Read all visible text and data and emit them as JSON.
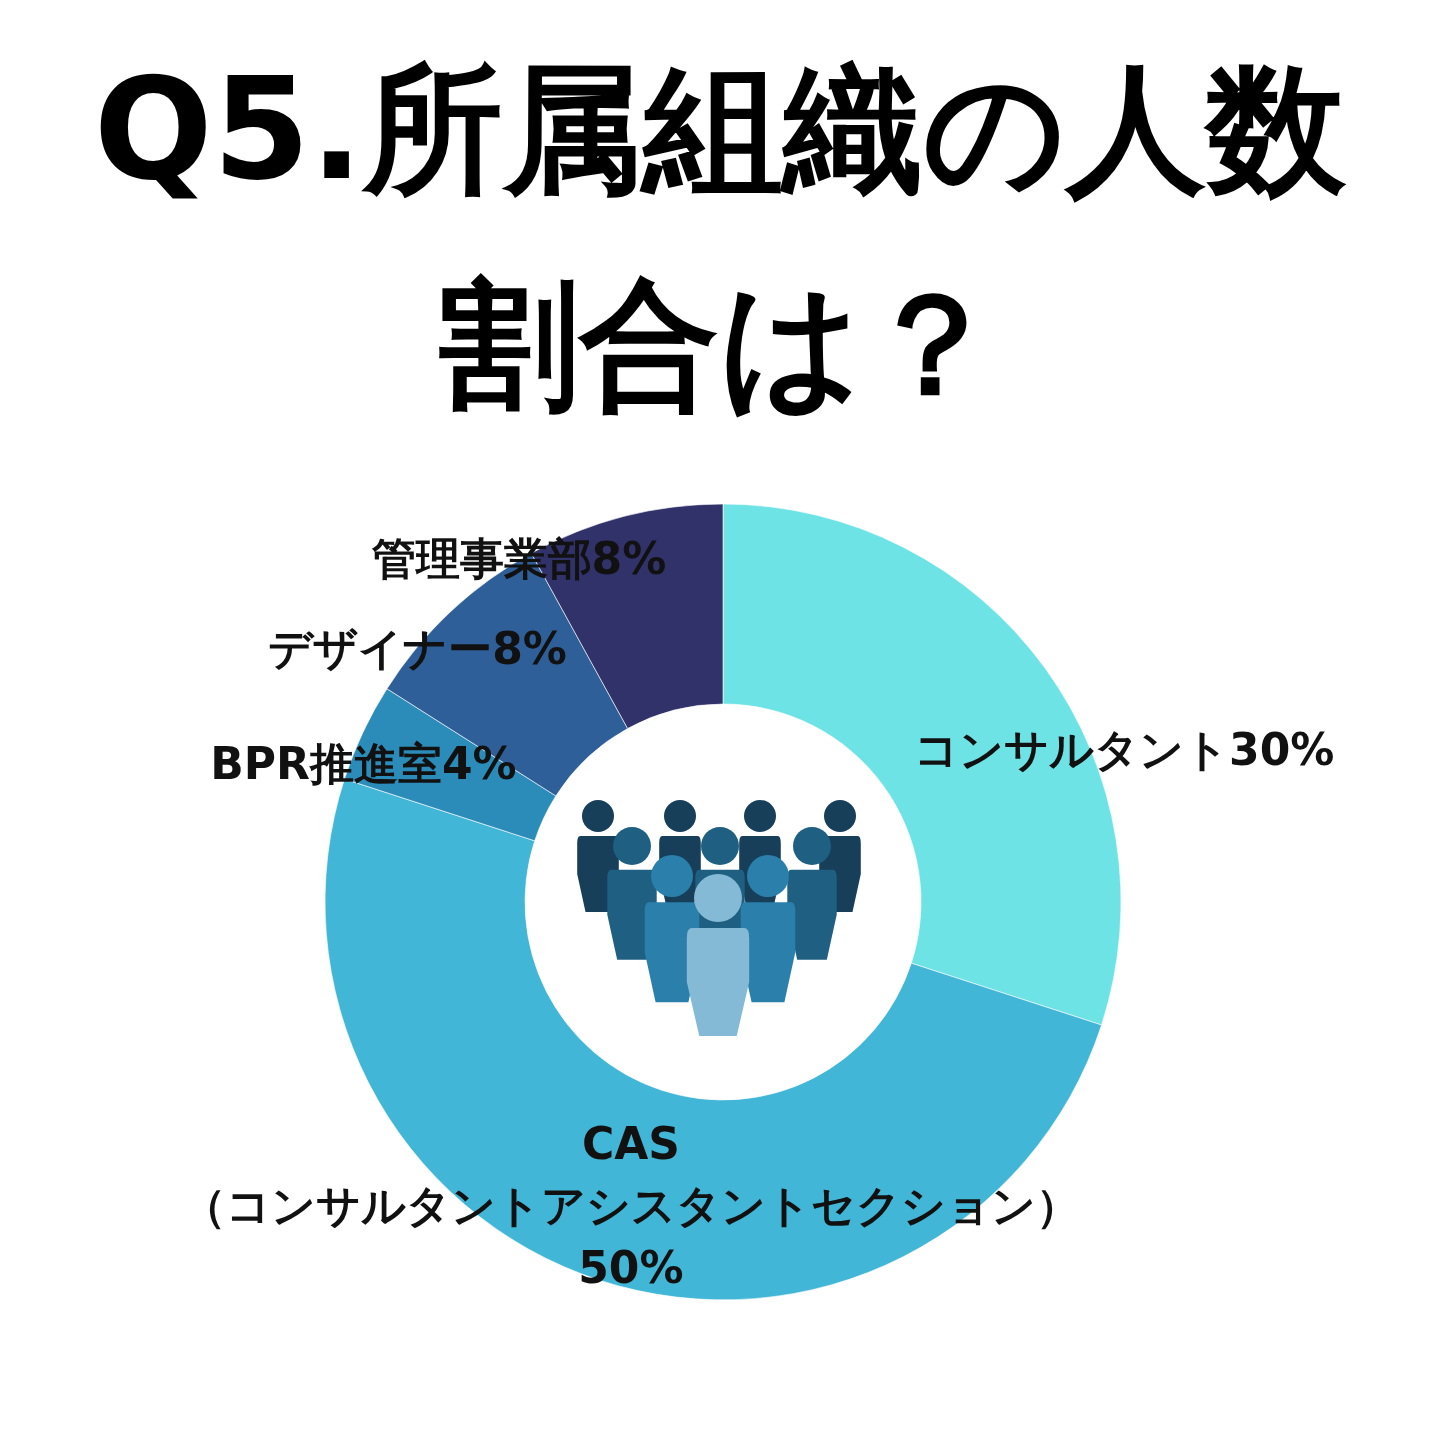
{
  "chart_data": {
    "type": "donut",
    "title": "Q5.所属組織の人数割合は？",
    "categories": [
      "コンサルタント",
      "CAS\n（コンサルタントアシスタントセクション）",
      "BPR推進室",
      "デザイナー",
      "管理事業部"
    ],
    "values": [
      30,
      50,
      4,
      8,
      8
    ],
    "colors": [
      "#6ee3e6",
      "#42b6d6",
      "#2b8cba",
      "#2f5f99",
      "#32326b"
    ],
    "value_labels": [
      "30%",
      "50%",
      "4%",
      "8%",
      "8%"
    ]
  }
}
